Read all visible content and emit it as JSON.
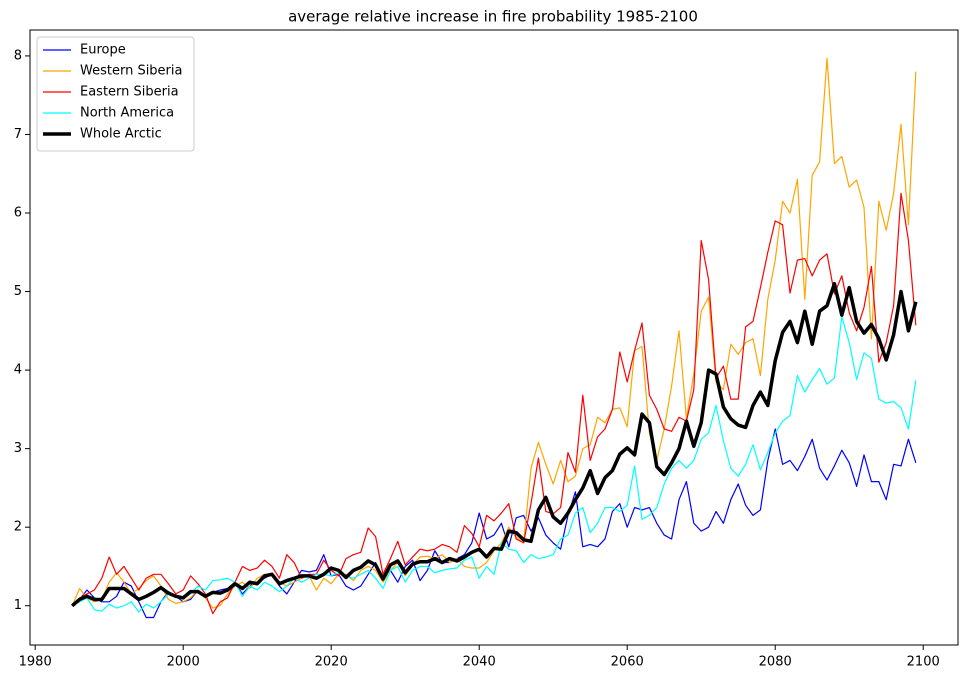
{
  "chart_data": {
    "type": "line",
    "title": "average relative increase in fire probability 1985-2100",
    "x": [
      1985,
      1986,
      1987,
      1988,
      1989,
      1990,
      1991,
      1992,
      1993,
      1994,
      1995,
      1996,
      1997,
      1998,
      1999,
      2000,
      2001,
      2002,
      2003,
      2004,
      2005,
      2006,
      2007,
      2008,
      2009,
      2010,
      2011,
      2012,
      2013,
      2014,
      2015,
      2016,
      2017,
      2018,
      2019,
      2020,
      2021,
      2022,
      2023,
      2024,
      2025,
      2026,
      2027,
      2028,
      2029,
      2030,
      2031,
      2032,
      2033,
      2034,
      2035,
      2036,
      2037,
      2038,
      2039,
      2040,
      2041,
      2042,
      2043,
      2044,
      2045,
      2046,
      2047,
      2048,
      2049,
      2050,
      2051,
      2052,
      2053,
      2054,
      2055,
      2056,
      2057,
      2058,
      2059,
      2060,
      2061,
      2062,
      2063,
      2064,
      2065,
      2066,
      2067,
      2068,
      2069,
      2070,
      2071,
      2072,
      2073,
      2074,
      2075,
      2076,
      2077,
      2078,
      2079,
      2080,
      2081,
      2082,
      2083,
      2084,
      2085,
      2086,
      2087,
      2088,
      2089,
      2090,
      2091,
      2092,
      2093,
      2094,
      2095,
      2096,
      2097,
      2098,
      2099
    ],
    "series": [
      {
        "name": "Europe",
        "color": "#0000ff",
        "width": 1.2,
        "values": [
          1.0,
          1.08,
          1.2,
          1.1,
          1.05,
          1.05,
          1.12,
          1.3,
          1.25,
          1.05,
          0.85,
          0.85,
          1.05,
          1.18,
          1.12,
          1.05,
          1.08,
          1.2,
          1.12,
          1.17,
          1.2,
          1.22,
          1.3,
          1.15,
          1.25,
          1.3,
          1.35,
          1.4,
          1.25,
          1.15,
          1.3,
          1.45,
          1.43,
          1.45,
          1.65,
          1.38,
          1.4,
          1.25,
          1.2,
          1.25,
          1.4,
          1.55,
          1.35,
          1.45,
          1.3,
          1.5,
          1.58,
          1.32,
          1.45,
          1.7,
          1.55,
          1.55,
          1.6,
          1.65,
          1.8,
          2.18,
          1.85,
          1.9,
          2.05,
          1.75,
          2.12,
          2.15,
          1.95,
          2.12,
          1.9,
          1.8,
          1.72,
          2.15,
          2.45,
          1.75,
          1.78,
          1.75,
          1.85,
          2.2,
          2.3,
          2.0,
          2.25,
          2.22,
          2.25,
          2.05,
          1.9,
          1.85,
          2.35,
          2.58,
          2.05,
          1.95,
          2.0,
          2.2,
          2.05,
          2.35,
          2.55,
          2.28,
          2.15,
          2.22,
          2.85,
          3.25,
          2.8,
          2.85,
          2.72,
          2.9,
          3.12,
          2.75,
          2.6,
          2.78,
          2.98,
          2.82,
          2.52,
          2.92,
          2.58,
          2.58,
          2.35,
          2.8,
          2.78,
          3.12,
          2.82
        ]
      },
      {
        "name": "Western Siberia",
        "color": "#ffa500",
        "width": 1.2,
        "values": [
          1.0,
          1.22,
          1.1,
          1.05,
          1.08,
          1.3,
          1.42,
          1.3,
          1.15,
          1.22,
          1.32,
          1.38,
          1.25,
          1.08,
          1.03,
          1.05,
          1.1,
          1.2,
          1.1,
          0.97,
          1.0,
          1.15,
          1.25,
          1.3,
          1.22,
          1.35,
          1.4,
          1.38,
          1.3,
          1.25,
          1.3,
          1.35,
          1.38,
          1.2,
          1.35,
          1.28,
          1.4,
          1.4,
          1.32,
          1.45,
          1.5,
          1.45,
          1.3,
          1.45,
          1.55,
          1.38,
          1.52,
          1.62,
          1.63,
          1.6,
          1.65,
          1.55,
          1.6,
          1.5,
          1.48,
          1.48,
          1.55,
          1.7,
          1.8,
          2.0,
          1.87,
          1.8,
          2.75,
          3.08,
          2.8,
          2.55,
          2.85,
          2.58,
          2.65,
          3.0,
          3.05,
          3.4,
          3.33,
          3.5,
          3.52,
          3.28,
          4.25,
          4.3,
          3.2,
          2.85,
          3.25,
          3.8,
          4.5,
          3.38,
          3.95,
          4.75,
          4.93,
          3.85,
          3.75,
          4.33,
          4.2,
          4.35,
          4.4,
          3.93,
          4.9,
          5.4,
          6.15,
          6.0,
          6.43,
          4.9,
          6.48,
          6.65,
          7.97,
          6.63,
          6.72,
          6.33,
          6.42,
          6.07,
          4.4,
          6.15,
          5.78,
          6.25,
          7.13,
          5.85,
          7.8
        ]
      },
      {
        "name": "Eastern Siberia",
        "color": "#ff0000",
        "width": 1.2,
        "values": [
          1.0,
          1.1,
          1.15,
          1.2,
          1.35,
          1.62,
          1.4,
          1.5,
          1.35,
          1.2,
          1.35,
          1.4,
          1.4,
          1.28,
          1.15,
          1.2,
          1.38,
          1.28,
          1.15,
          0.9,
          1.05,
          1.1,
          1.3,
          1.5,
          1.45,
          1.48,
          1.58,
          1.5,
          1.35,
          1.65,
          1.55,
          1.35,
          1.4,
          1.4,
          1.58,
          1.45,
          1.38,
          1.6,
          1.65,
          1.68,
          1.99,
          1.88,
          1.4,
          1.6,
          1.82,
          1.52,
          1.62,
          1.72,
          1.7,
          1.72,
          1.78,
          1.75,
          1.68,
          2.02,
          1.92,
          1.75,
          2.15,
          2.08,
          2.18,
          2.3,
          1.85,
          1.8,
          2.3,
          2.88,
          2.2,
          2.17,
          2.25,
          2.95,
          2.7,
          3.68,
          2.85,
          3.15,
          3.25,
          3.5,
          4.23,
          3.85,
          4.25,
          4.6,
          3.68,
          3.5,
          3.25,
          3.22,
          3.4,
          3.35,
          3.75,
          5.65,
          5.15,
          3.9,
          4.05,
          3.63,
          3.63,
          4.55,
          4.62,
          5.05,
          5.5,
          5.9,
          5.85,
          4.98,
          5.4,
          5.42,
          5.2,
          5.4,
          5.48,
          4.97,
          5.2,
          4.73,
          4.5,
          4.8,
          5.32,
          4.1,
          4.35,
          4.82,
          6.25,
          5.65,
          4.57
        ]
      },
      {
        "name": "North America",
        "color": "#00ffff",
        "width": 1.2,
        "values": [
          1.0,
          1.05,
          1.1,
          0.95,
          0.93,
          1.02,
          0.97,
          1.0,
          1.05,
          0.92,
          1.02,
          0.97,
          1.05,
          1.15,
          1.12,
          1.1,
          1.15,
          1.25,
          1.2,
          1.32,
          1.33,
          1.35,
          1.3,
          1.12,
          1.25,
          1.2,
          1.3,
          1.25,
          1.18,
          1.25,
          1.35,
          1.3,
          1.35,
          1.4,
          1.4,
          1.38,
          1.42,
          1.38,
          1.35,
          1.4,
          1.45,
          1.35,
          1.22,
          1.45,
          1.5,
          1.3,
          1.45,
          1.5,
          1.5,
          1.42,
          1.45,
          1.47,
          1.48,
          1.58,
          1.62,
          1.35,
          1.5,
          1.4,
          1.8,
          1.72,
          1.7,
          1.55,
          1.65,
          1.6,
          1.62,
          1.65,
          1.85,
          1.9,
          2.18,
          2.25,
          1.93,
          2.05,
          2.25,
          2.25,
          2.2,
          2.28,
          2.78,
          2.1,
          2.15,
          2.25,
          2.55,
          2.75,
          2.85,
          2.75,
          2.85,
          3.12,
          3.2,
          3.55,
          3.1,
          2.75,
          2.65,
          2.8,
          3.05,
          2.73,
          2.95,
          3.2,
          3.35,
          3.42,
          3.93,
          3.72,
          3.88,
          4.02,
          3.82,
          3.9,
          4.68,
          4.35,
          3.88,
          4.22,
          4.15,
          3.63,
          3.58,
          3.6,
          3.52,
          3.25,
          3.87
        ]
      },
      {
        "name": "Whole Arctic",
        "color": "#000000",
        "width": 3.5,
        "values": [
          1.0,
          1.08,
          1.12,
          1.08,
          1.08,
          1.22,
          1.22,
          1.22,
          1.15,
          1.08,
          1.12,
          1.17,
          1.23,
          1.16,
          1.12,
          1.1,
          1.18,
          1.18,
          1.12,
          1.17,
          1.16,
          1.2,
          1.28,
          1.22,
          1.3,
          1.28,
          1.38,
          1.4,
          1.28,
          1.32,
          1.35,
          1.38,
          1.38,
          1.35,
          1.4,
          1.48,
          1.45,
          1.36,
          1.45,
          1.49,
          1.57,
          1.52,
          1.34,
          1.52,
          1.57,
          1.42,
          1.53,
          1.56,
          1.56,
          1.6,
          1.55,
          1.6,
          1.57,
          1.62,
          1.68,
          1.72,
          1.62,
          1.73,
          1.72,
          1.95,
          1.93,
          1.84,
          1.82,
          2.22,
          2.38,
          2.13,
          2.05,
          2.18,
          2.35,
          2.5,
          2.72,
          2.43,
          2.63,
          2.72,
          2.93,
          3.01,
          2.92,
          3.44,
          3.33,
          2.77,
          2.67,
          2.82,
          3.0,
          3.35,
          3.03,
          3.33,
          4.0,
          3.95,
          3.53,
          3.38,
          3.3,
          3.27,
          3.55,
          3.72,
          3.55,
          4.12,
          4.48,
          4.62,
          4.35,
          4.75,
          4.33,
          4.75,
          4.82,
          5.1,
          4.7,
          5.05,
          4.62,
          4.47,
          4.58,
          4.4,
          4.13,
          4.45,
          5.0,
          4.5,
          4.87
        ]
      }
    ],
    "xlim": [
      1979.3,
      2104.7
    ],
    "ylim": [
      0.5,
      8.33
    ],
    "xticks": [
      1980,
      2000,
      2020,
      2040,
      2060,
      2080,
      2100
    ],
    "yticks": [
      1,
      2,
      3,
      4,
      5,
      6,
      7,
      8
    ],
    "legend": "upper left",
    "grid": false
  }
}
